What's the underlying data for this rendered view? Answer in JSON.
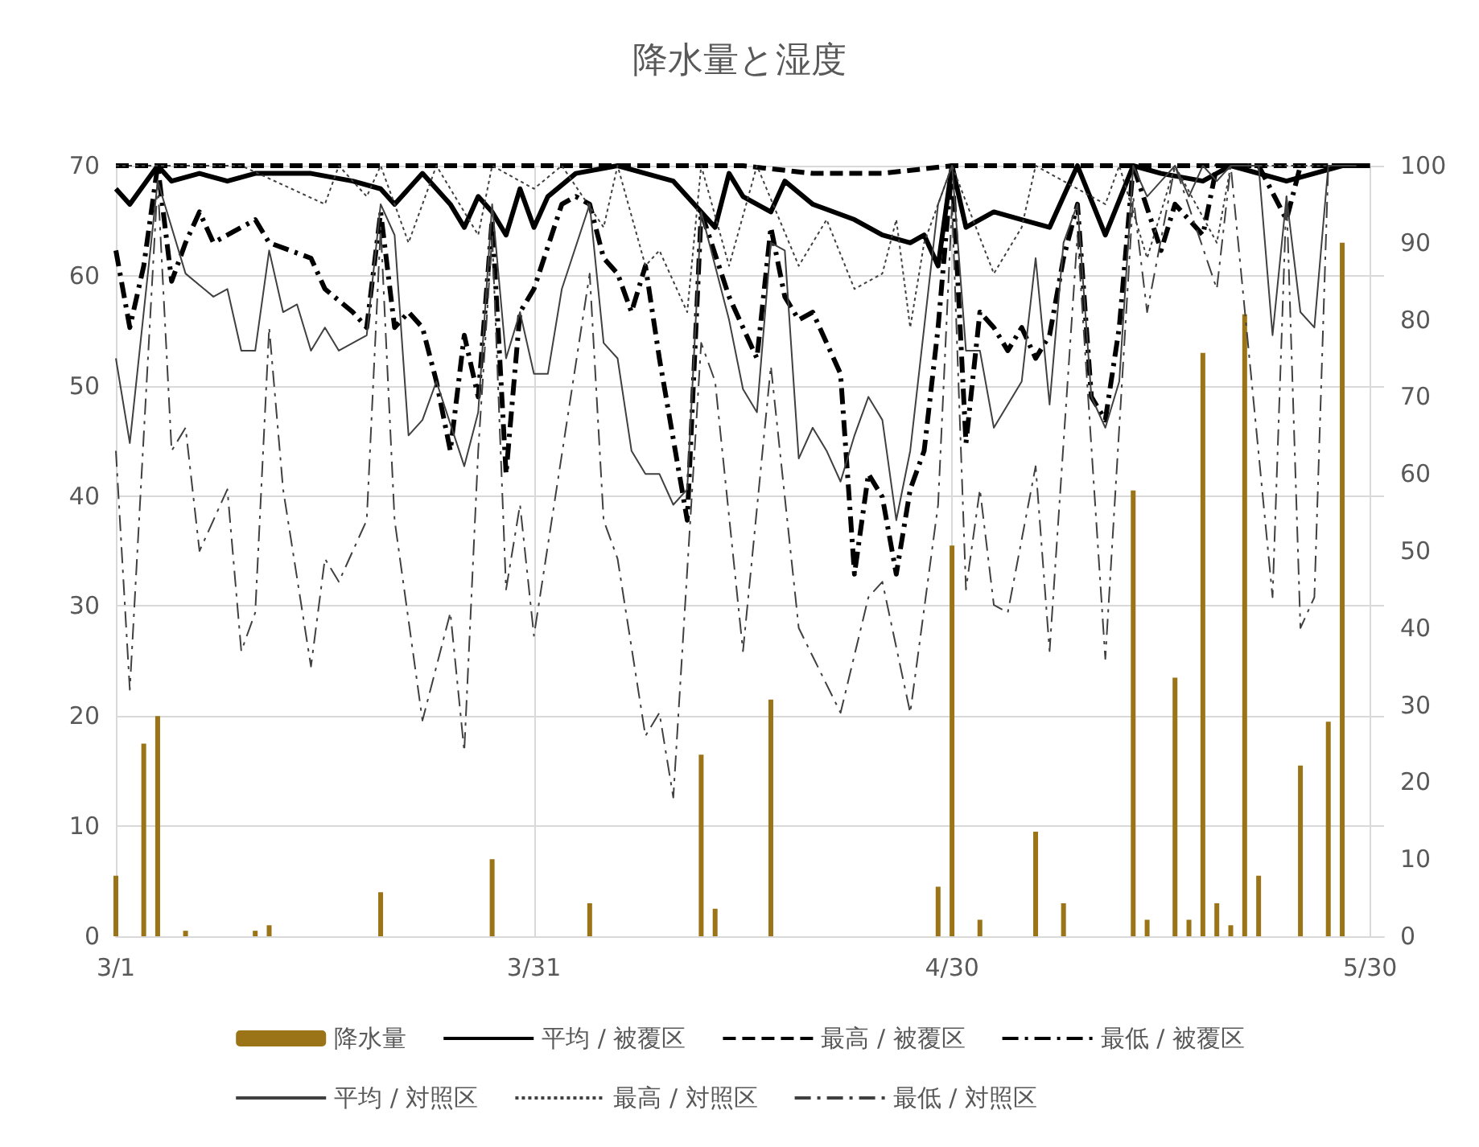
{
  "chart_data": {
    "type": "line",
    "title": "降水量と湿度",
    "xlim": [
      "--03-01",
      "--05-31"
    ],
    "xticks": [
      {
        "value": "--03-01",
        "label": "3/1"
      },
      {
        "value": "--03-31",
        "label": "3/31"
      },
      {
        "value": "--04-30",
        "label": "4/30"
      },
      {
        "value": "--05-30",
        "label": "5/30"
      }
    ],
    "ylim": [
      0,
      70
    ],
    "yticks": [
      0,
      10,
      20,
      30,
      40,
      50,
      60,
      70
    ],
    "y2lim": [
      0,
      100
    ],
    "y2ticks": [
      0,
      10,
      20,
      30,
      40,
      50,
      60,
      70,
      80,
      90,
      100
    ],
    "grid": true,
    "legend": "bottom",
    "marker": "none",
    "series": [
      {
        "name": "降水量",
        "type": "bar",
        "color": "#9a7416",
        "x": [
          "--03-01",
          "--03-03",
          "--03-04",
          "--03-06",
          "--03-11",
          "--03-12",
          "--03-20",
          "--03-28",
          "--04-04",
          "--04-12",
          "--04-13",
          "--04-17",
          "--04-29",
          "--04-30",
          "--05-02",
          "--05-06",
          "--05-08",
          "--05-13",
          "--05-14",
          "--05-16",
          "--05-17",
          "--05-18",
          "--05-19",
          "--05-20",
          "--05-21",
          "--05-22",
          "--05-25",
          "--05-27",
          "--05-28"
        ],
        "values": [
          5.5,
          17.5,
          20,
          0.5,
          0.5,
          1,
          4,
          7,
          3,
          16.5,
          2.5,
          21.5,
          4.5,
          35.5,
          1.5,
          9.5,
          3,
          40.5,
          1.5,
          23.5,
          1.5,
          53,
          3,
          1,
          56.5,
          5.5,
          15.5,
          19.5,
          63
        ]
      },
      {
        "name": "平均 / 被覆区",
        "axis": "y2",
        "color": "#000000",
        "line_style": "solid",
        "x": [
          "--03-01",
          "--03-02",
          "--03-04",
          "--03-05",
          "--03-07",
          "--03-09",
          "--03-11",
          "--03-15",
          "--03-18",
          "--03-20",
          "--03-21",
          "--03-23",
          "--03-25",
          "--03-26",
          "--03-27",
          "--03-28",
          "--03-29",
          "--03-30",
          "--03-31",
          "--04-01",
          "--04-03",
          "--04-06",
          "--04-08",
          "--04-10",
          "--04-12",
          "--04-13",
          "--04-14",
          "--04-15",
          "--04-17",
          "--04-18",
          "--04-20",
          "--04-23",
          "--04-25",
          "--04-27",
          "--04-28",
          "--04-29",
          "--04-30",
          "--05-01",
          "--05-03",
          "--05-05",
          "--05-07",
          "--05-09",
          "--05-11",
          "--05-13",
          "--05-15",
          "--05-18",
          "--05-20",
          "--05-24",
          "--05-26",
          "--05-28",
          "--05-30"
        ],
        "values": [
          97,
          95,
          100,
          98,
          99,
          98,
          99,
          99,
          98,
          97,
          95,
          99,
          95,
          92,
          96,
          94,
          91,
          97,
          92,
          96,
          99,
          100,
          99,
          98,
          94,
          92,
          99,
          96,
          94,
          98,
          95,
          93,
          91,
          90,
          91,
          87,
          100,
          92,
          94,
          93,
          92,
          100,
          91,
          100,
          99,
          98,
          100,
          98,
          99,
          100,
          100
        ]
      },
      {
        "name": "最高 / 被覆区",
        "axis": "y2",
        "color": "#000000",
        "line_style": "dashed",
        "x": [
          "--03-01",
          "--03-15",
          "--03-31",
          "--04-15",
          "--04-20",
          "--04-25",
          "--04-30",
          "--05-15",
          "--05-30"
        ],
        "values": [
          100,
          100,
          100,
          100,
          99,
          99,
          100,
          100,
          100
        ]
      },
      {
        "name": "最低 / 被覆区",
        "axis": "y2",
        "color": "#000000",
        "line_style": "dashdot",
        "x": [
          "--03-01",
          "--03-02",
          "--03-03",
          "--03-04",
          "--03-05",
          "--03-06",
          "--03-07",
          "--03-08",
          "--03-09",
          "--03-11",
          "--03-12",
          "--03-15",
          "--03-16",
          "--03-18",
          "--03-19",
          "--03-20",
          "--03-21",
          "--03-22",
          "--03-23",
          "--03-24",
          "--03-25",
          "--03-26",
          "--03-27",
          "--03-28",
          "--03-29",
          "--03-30",
          "--03-31",
          "--04-02",
          "--04-03",
          "--04-04",
          "--04-05",
          "--04-06",
          "--04-07",
          "--04-08",
          "--04-09",
          "--04-11",
          "--04-12",
          "--04-14",
          "--04-16",
          "--04-17",
          "--04-18",
          "--04-19",
          "--04-20",
          "--04-21",
          "--04-22",
          "--04-23",
          "--04-24",
          "--04-25",
          "--04-26",
          "--04-27",
          "--04-28",
          "--04-29",
          "--04-30",
          "--05-01",
          "--05-02",
          "--05-03",
          "--05-04",
          "--05-05",
          "--05-06",
          "--05-07",
          "--05-08",
          "--05-09",
          "--05-10",
          "--05-11",
          "--05-12",
          "--05-13",
          "--05-15",
          "--05-16",
          "--05-18",
          "--05-19",
          "--05-22",
          "--05-24",
          "--05-25",
          "--05-27",
          "--05-29"
        ],
        "values": [
          89,
          79,
          87,
          100,
          85,
          90,
          94,
          90,
          91,
          93,
          90,
          88,
          84,
          81,
          79,
          94,
          79,
          81,
          79,
          72,
          63,
          78,
          70,
          93,
          60,
          81,
          84,
          95,
          96,
          95,
          88,
          86,
          81,
          87,
          75,
          54,
          94,
          83,
          75,
          92,
          83,
          80,
          81,
          77,
          73,
          47,
          60,
          57,
          47,
          58,
          63,
          79,
          100,
          64,
          81,
          79,
          76,
          79,
          75,
          78,
          88,
          95,
          70,
          67,
          79,
          100,
          89,
          95,
          91,
          100,
          100,
          93,
          100,
          100,
          100
        ]
      },
      {
        "name": "平均 / 対照区",
        "axis": "y2",
        "color": "#404040",
        "line_style": "solid",
        "x": [
          "--03-01",
          "--03-02",
          "--03-04",
          "--03-06",
          "--03-08",
          "--03-09",
          "--03-10",
          "--03-11",
          "--03-12",
          "--03-13",
          "--03-14",
          "--03-15",
          "--03-16",
          "--03-17",
          "--03-19",
          "--03-20",
          "--03-21",
          "--03-22",
          "--03-23",
          "--03-24",
          "--03-26",
          "--03-27",
          "--03-28",
          "--03-29",
          "--03-30",
          "--03-31",
          "--04-01",
          "--04-02",
          "--04-04",
          "--04-05",
          "--04-06",
          "--04-07",
          "--04-08",
          "--04-09",
          "--04-10",
          "--04-11",
          "--04-12",
          "--04-14",
          "--04-15",
          "--04-16",
          "--04-17",
          "--04-18",
          "--04-19",
          "--04-20",
          "--04-21",
          "--04-22",
          "--04-23",
          "--04-24",
          "--04-25",
          "--04-26",
          "--04-27",
          "--04-29",
          "--04-30",
          "--05-01",
          "--05-02",
          "--05-03",
          "--05-04",
          "--05-05",
          "--05-06",
          "--05-07",
          "--05-08",
          "--05-09",
          "--05-10",
          "--05-11",
          "--05-12",
          "--05-13",
          "--05-14",
          "--05-15",
          "--05-16",
          "--05-17",
          "--05-18",
          "--05-19",
          "--05-20",
          "--05-21",
          "--05-22",
          "--05-23",
          "--05-24",
          "--05-25",
          "--05-26",
          "--05-27",
          "--05-29"
        ],
        "values": [
          75,
          64,
          98,
          86,
          83,
          84,
          76,
          76,
          89,
          81,
          82,
          76,
          79,
          76,
          78,
          95,
          91,
          65,
          67,
          72,
          61,
          68,
          95,
          75,
          81,
          73,
          73,
          84,
          95,
          77,
          75,
          63,
          60,
          60,
          56,
          58,
          94,
          80,
          71,
          68,
          90,
          89,
          62,
          66,
          63,
          59,
          65,
          70,
          67,
          54,
          63,
          95,
          100,
          76,
          76,
          66,
          69,
          72,
          88,
          69,
          90,
          95,
          70,
          66,
          72,
          100,
          96,
          98,
          100,
          96,
          100,
          98,
          100,
          100,
          100,
          78,
          96,
          81,
          79,
          100,
          100
        ]
      },
      {
        "name": "最高 / 対照区",
        "axis": "y2",
        "color": "#404040",
        "line_style": "dotted",
        "x": [
          "--03-01",
          "--03-05",
          "--03-10",
          "--03-16",
          "--03-17",
          "--03-19",
          "--03-20",
          "--03-22",
          "--03-24",
          "--03-27",
          "--03-28",
          "--03-31",
          "--04-02",
          "--04-05",
          "--04-06",
          "--04-08",
          "--04-09",
          "--04-11",
          "--04-12",
          "--04-14",
          "--04-16",
          "--04-19",
          "--04-21",
          "--04-23",
          "--04-25",
          "--04-26",
          "--04-27",
          "--04-28",
          "--04-30",
          "--05-03",
          "--05-05",
          "--05-06",
          "--05-11",
          "--05-12",
          "--05-14",
          "--05-16",
          "--05-19",
          "--05-20",
          "--05-29"
        ],
        "values": [
          100,
          100,
          100,
          95,
          100,
          96,
          100,
          90,
          100,
          91,
          100,
          97,
          100,
          92,
          100,
          87,
          89,
          81,
          100,
          87,
          100,
          87,
          93,
          84,
          86,
          93,
          79,
          90,
          100,
          86,
          92,
          100,
          95,
          100,
          88,
          100,
          90,
          100,
          100
        ]
      },
      {
        "name": "最低 / 対照区",
        "axis": "y2",
        "color": "#404040",
        "line_style": "dashdot",
        "x": [
          "--03-01",
          "--03-02",
          "--03-04",
          "--03-05",
          "--03-06",
          "--03-07",
          "--03-09",
          "--03-10",
          "--03-11",
          "--03-12",
          "--03-13",
          "--03-15",
          "--03-16",
          "--03-17",
          "--03-19",
          "--03-20",
          "--03-21",
          "--03-23",
          "--03-25",
          "--03-26",
          "--03-27",
          "--03-28",
          "--03-29",
          "--03-30",
          "--03-31",
          "--04-04",
          "--04-05",
          "--04-06",
          "--04-08",
          "--04-09",
          "--04-10",
          "--04-12",
          "--04-13",
          "--04-15",
          "--04-17",
          "--04-19",
          "--04-22",
          "--04-24",
          "--04-25",
          "--04-27",
          "--04-29",
          "--04-30",
          "--05-01",
          "--05-02",
          "--05-03",
          "--05-04",
          "--05-06",
          "--05-07",
          "--05-09",
          "--05-11",
          "--05-13",
          "--05-14",
          "--05-16",
          "--05-19",
          "--05-20",
          "--05-23",
          "--05-24",
          "--05-25",
          "--05-26",
          "--05-27",
          "--05-29"
        ],
        "values": [
          63,
          32,
          98,
          63,
          66,
          50,
          58,
          37,
          42,
          79,
          58,
          35,
          49,
          46,
          54,
          92,
          54,
          28,
          42,
          24,
          63,
          91,
          45,
          56,
          39,
          86,
          54,
          49,
          26,
          29,
          18,
          77,
          72,
          37,
          74,
          40,
          29,
          44,
          46,
          29,
          56,
          95,
          45,
          58,
          43,
          42,
          61,
          37,
          91,
          36,
          96,
          81,
          100,
          84,
          100,
          44,
          96,
          40,
          44,
          100,
          100
        ]
      }
    ]
  }
}
